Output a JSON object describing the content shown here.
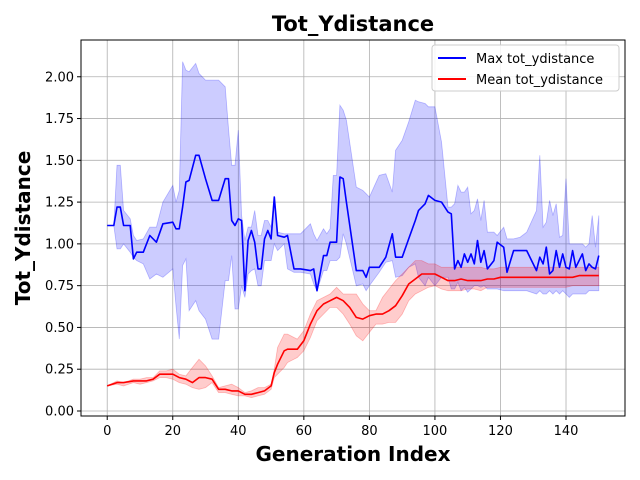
{
  "chart_data": {
    "type": "line",
    "title": "Tot_Ydistance",
    "xlabel": "Generation Index",
    "ylabel": "Tot_Ydistance",
    "xlim": [
      -8,
      158
    ],
    "ylim": [
      -0.03,
      2.22
    ],
    "xticks": [
      0,
      20,
      40,
      60,
      80,
      100,
      120,
      140
    ],
    "yticks": [
      0.0,
      0.25,
      0.5,
      0.75,
      1.0,
      1.25,
      1.5,
      1.75,
      2.0
    ],
    "ytick_labels": [
      "0.00",
      "0.25",
      "0.50",
      "0.75",
      "1.00",
      "1.25",
      "1.50",
      "1.75",
      "2.00"
    ],
    "grid": true,
    "legend": "top-right",
    "series": [
      {
        "name": "Max tot_ydistance",
        "color": "#0000ff",
        "fill_color": "#0000ff",
        "x": [
          0,
          2,
          3,
          4,
          5,
          7,
          8,
          9,
          11,
          13,
          15,
          17,
          20,
          21,
          22,
          23,
          24,
          25,
          27,
          28,
          30,
          32,
          34,
          36,
          37,
          38,
          39,
          40,
          41,
          42,
          43,
          44,
          45,
          46,
          47,
          48,
          49,
          50,
          51,
          52,
          54,
          55,
          57,
          59,
          62,
          63,
          64,
          66,
          67,
          68,
          69,
          70,
          71,
          72,
          73,
          76,
          78,
          79,
          80,
          83,
          85,
          87,
          88,
          90,
          92,
          94,
          95,
          97,
          98,
          100,
          102,
          104,
          105,
          106,
          107,
          108,
          109,
          110,
          111,
          112,
          113,
          114,
          115,
          116,
          118,
          119,
          121,
          122,
          124,
          126,
          128,
          131,
          132,
          133,
          134,
          135,
          136,
          137,
          138,
          139,
          140,
          141,
          142,
          143,
          145,
          146,
          147,
          148,
          149,
          150
        ],
        "values": [
          1.11,
          1.11,
          1.22,
          1.22,
          1.11,
          1.11,
          0.91,
          0.95,
          0.95,
          1.05,
          1.01,
          1.12,
          1.13,
          1.09,
          1.09,
          1.22,
          1.37,
          1.38,
          1.53,
          1.53,
          1.39,
          1.26,
          1.26,
          1.39,
          1.39,
          1.14,
          1.11,
          1.15,
          1.14,
          0.72,
          1.02,
          1.08,
          1.01,
          0.85,
          0.85,
          1.03,
          1.08,
          1.03,
          1.28,
          1.05,
          1.04,
          1.05,
          0.85,
          0.85,
          0.84,
          0.85,
          0.72,
          0.93,
          0.93,
          1.01,
          1.01,
          1.01,
          1.4,
          1.39,
          1.25,
          0.84,
          0.84,
          0.8,
          0.86,
          0.86,
          0.92,
          1.06,
          0.92,
          0.92,
          1.03,
          1.14,
          1.2,
          1.24,
          1.29,
          1.26,
          1.25,
          1.19,
          1.18,
          0.85,
          0.9,
          0.86,
          0.94,
          0.89,
          0.94,
          0.88,
          1.02,
          0.89,
          0.96,
          0.85,
          0.9,
          1.01,
          0.98,
          0.83,
          0.96,
          0.96,
          0.96,
          0.84,
          0.92,
          0.88,
          0.98,
          0.82,
          0.84,
          0.96,
          0.86,
          0.94,
          0.86,
          0.85,
          0.96,
          0.86,
          0.94,
          0.84,
          0.88,
          0.86,
          0.85,
          0.93
        ],
        "band_upper": [
          1.11,
          1.11,
          1.47,
          1.47,
          1.2,
          1.15,
          1.05,
          1.02,
          1.03,
          1.1,
          1.1,
          1.25,
          1.35,
          1.25,
          1.32,
          2.09,
          2.04,
          2.03,
          2.08,
          2.02,
          1.98,
          1.98,
          1.98,
          1.94,
          1.69,
          1.47,
          1.47,
          1.68,
          1.17,
          1.02,
          1.1,
          1.1,
          1.2,
          1.05,
          1.05,
          1.14,
          1.14,
          1.1,
          1.28,
          1.07,
          1.06,
          1.06,
          1.06,
          1.06,
          1.12,
          1.06,
          1.02,
          1.09,
          1.06,
          1.09,
          1.41,
          1.41,
          1.83,
          1.8,
          1.74,
          1.34,
          1.32,
          1.3,
          1.28,
          1.41,
          1.42,
          1.31,
          1.56,
          1.62,
          1.73,
          1.86,
          1.85,
          1.84,
          1.82,
          1.82,
          1.61,
          1.22,
          1.22,
          1.24,
          1.35,
          1.31,
          1.31,
          1.34,
          1.18,
          1.2,
          1.27,
          1.14,
          1.26,
          1.07,
          1.07,
          1.05,
          1.1,
          1.03,
          1.03,
          1.04,
          1.07,
          1.2,
          1.53,
          1.1,
          1.13,
          1.26,
          1.17,
          1.24,
          1.04,
          1.05,
          1.39,
          1.0,
          1.0,
          1.0,
          1.0,
          0.98,
          1.0,
          1.17,
          0.98,
          1.17
        ],
        "band_lower": [
          1.11,
          1.11,
          0.97,
          0.97,
          1.0,
          0.95,
          0.92,
          0.9,
          0.88,
          0.79,
          0.82,
          0.8,
          0.85,
          0.63,
          0.43,
          0.87,
          0.91,
          0.6,
          0.66,
          0.6,
          0.55,
          0.43,
          0.43,
          0.78,
          0.78,
          0.93,
          0.61,
          0.61,
          0.75,
          0.68,
          0.82,
          0.84,
          0.85,
          0.75,
          0.75,
          0.9,
          0.9,
          0.9,
          1.0,
          0.96,
          1.0,
          0.85,
          0.83,
          0.83,
          0.82,
          0.76,
          0.72,
          0.84,
          0.84,
          0.9,
          0.9,
          0.9,
          0.92,
          1.06,
          1.0,
          0.75,
          0.76,
          0.72,
          0.75,
          0.83,
          0.89,
          0.9,
          0.8,
          0.81,
          0.86,
          0.88,
          0.8,
          0.75,
          0.8,
          0.75,
          0.8,
          0.8,
          0.73,
          0.73,
          0.77,
          0.72,
          0.74,
          0.71,
          0.73,
          0.75,
          0.75,
          0.74,
          0.75,
          0.73,
          0.73,
          0.73,
          0.72,
          0.72,
          0.72,
          0.72,
          0.72,
          0.7,
          0.72,
          0.7,
          0.7,
          0.72,
          0.7,
          0.72,
          0.7,
          0.72,
          0.7,
          0.68,
          0.7,
          0.7,
          0.7,
          0.7,
          0.72,
          0.72,
          0.72,
          0.72
        ]
      },
      {
        "name": "Mean tot_ydistance",
        "color": "#ff0000",
        "fill_color": "#ff0000",
        "x": [
          0,
          3,
          5,
          8,
          10,
          12,
          14,
          16,
          18,
          20,
          22,
          24,
          26,
          28,
          30,
          32,
          34,
          36,
          38,
          40,
          42,
          44,
          46,
          48,
          50,
          51,
          52,
          54,
          55,
          57,
          58,
          60,
          62,
          64,
          66,
          68,
          70,
          72,
          74,
          76,
          78,
          80,
          82,
          84,
          86,
          88,
          90,
          92,
          94,
          96,
          98,
          100,
          102,
          104,
          106,
          108,
          110,
          112,
          114,
          116,
          118,
          120,
          122,
          124,
          126,
          128,
          130,
          132,
          134,
          136,
          138,
          140,
          142,
          144,
          146,
          148,
          150
        ],
        "values": [
          0.15,
          0.17,
          0.17,
          0.18,
          0.18,
          0.18,
          0.19,
          0.22,
          0.22,
          0.22,
          0.2,
          0.19,
          0.17,
          0.2,
          0.2,
          0.19,
          0.13,
          0.13,
          0.12,
          0.12,
          0.1,
          0.1,
          0.11,
          0.12,
          0.15,
          0.23,
          0.28,
          0.36,
          0.37,
          0.37,
          0.37,
          0.42,
          0.52,
          0.6,
          0.64,
          0.66,
          0.68,
          0.66,
          0.62,
          0.56,
          0.55,
          0.57,
          0.58,
          0.58,
          0.6,
          0.63,
          0.69,
          0.76,
          0.79,
          0.82,
          0.82,
          0.82,
          0.8,
          0.78,
          0.78,
          0.79,
          0.78,
          0.78,
          0.78,
          0.79,
          0.79,
          0.8,
          0.8,
          0.8,
          0.8,
          0.8,
          0.8,
          0.8,
          0.8,
          0.8,
          0.8,
          0.8,
          0.8,
          0.81,
          0.81,
          0.81,
          0.81
        ],
        "band_upper": [
          0.15,
          0.18,
          0.17,
          0.19,
          0.19,
          0.2,
          0.2,
          0.24,
          0.24,
          0.25,
          0.22,
          0.21,
          0.26,
          0.31,
          0.27,
          0.21,
          0.14,
          0.15,
          0.16,
          0.14,
          0.11,
          0.12,
          0.14,
          0.14,
          0.16,
          0.25,
          0.38,
          0.46,
          0.46,
          0.44,
          0.43,
          0.48,
          0.58,
          0.66,
          0.68,
          0.7,
          0.74,
          0.7,
          0.7,
          0.7,
          0.64,
          0.6,
          0.6,
          0.68,
          0.73,
          0.78,
          0.82,
          0.86,
          0.9,
          0.9,
          0.88,
          0.88,
          0.86,
          0.86,
          0.86,
          0.86,
          0.86,
          0.86,
          0.86,
          0.85,
          0.85,
          0.86,
          0.86,
          0.86,
          0.86,
          0.86,
          0.86,
          0.86,
          0.86,
          0.86,
          0.86,
          0.86,
          0.86,
          0.86,
          0.86,
          0.86,
          0.86
        ],
        "band_lower": [
          0.15,
          0.16,
          0.15,
          0.17,
          0.16,
          0.17,
          0.18,
          0.2,
          0.2,
          0.19,
          0.17,
          0.16,
          0.14,
          0.13,
          0.14,
          0.17,
          0.11,
          0.11,
          0.1,
          0.09,
          0.09,
          0.08,
          0.09,
          0.1,
          0.13,
          0.2,
          0.22,
          0.26,
          0.29,
          0.31,
          0.32,
          0.36,
          0.44,
          0.54,
          0.58,
          0.62,
          0.62,
          0.58,
          0.52,
          0.45,
          0.42,
          0.47,
          0.52,
          0.52,
          0.53,
          0.53,
          0.58,
          0.66,
          0.7,
          0.72,
          0.74,
          0.75,
          0.73,
          0.72,
          0.72,
          0.72,
          0.73,
          0.73,
          0.72,
          0.74,
          0.74,
          0.74,
          0.74,
          0.74,
          0.74,
          0.74,
          0.74,
          0.74,
          0.74,
          0.74,
          0.74,
          0.74,
          0.75,
          0.75,
          0.75,
          0.75,
          0.75
        ]
      }
    ]
  }
}
